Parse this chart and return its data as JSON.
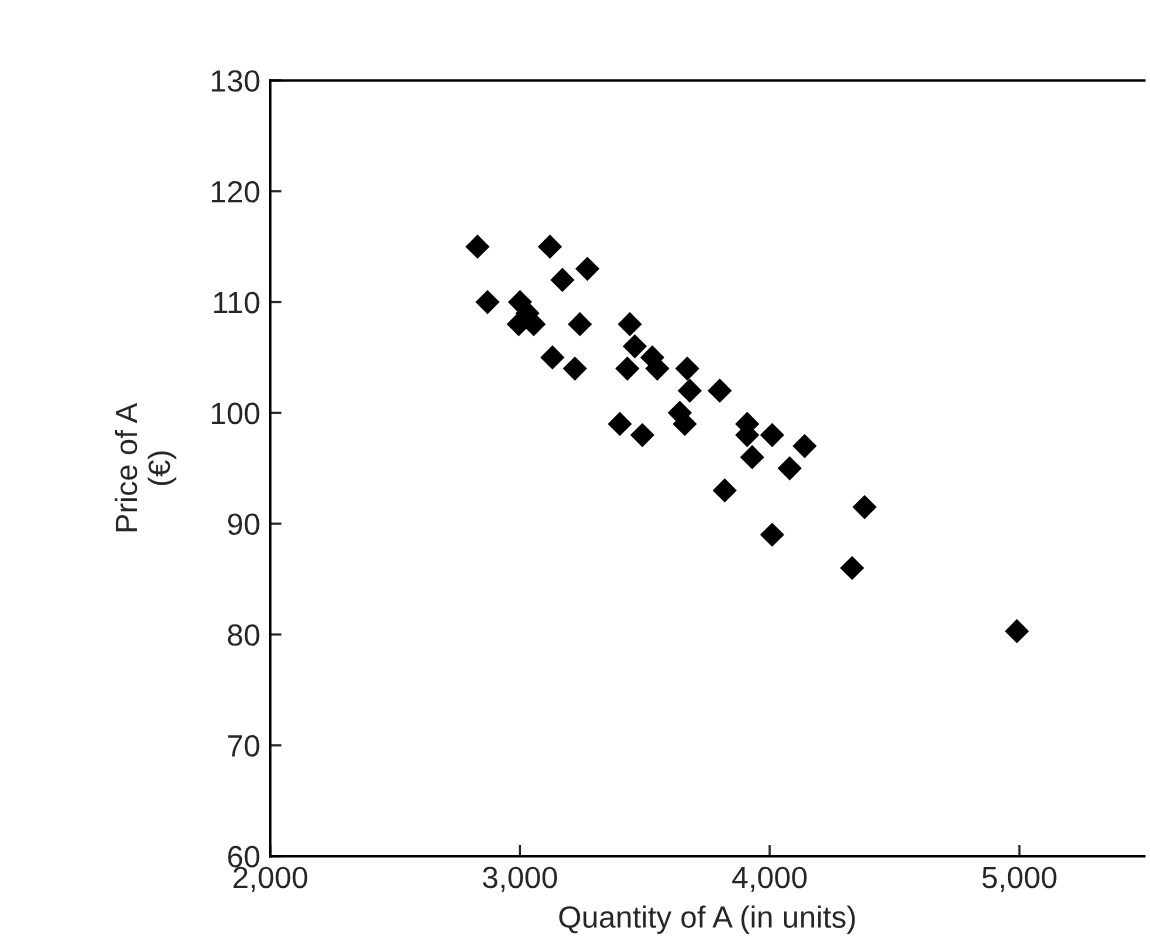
{
  "chart_data": {
    "type": "scatter",
    "xlabel": "Quantity of A (in units)",
    "ylabel": "Price of A\n(€)",
    "marker": "diamond",
    "grid": false,
    "legend": false,
    "xlim": [
      2000,
      5500
    ],
    "ylim": [
      60,
      130
    ],
    "xticks": [
      {
        "value": 2000,
        "label": "2,000"
      },
      {
        "value": 3000,
        "label": "3,000"
      },
      {
        "value": 4000,
        "label": "4,000"
      },
      {
        "value": 5000,
        "label": "5,000"
      }
    ],
    "yticks": [
      60,
      70,
      80,
      90,
      100,
      110,
      120,
      130
    ],
    "series": [
      {
        "color": "#000000",
        "x": [
          2830,
          2870,
          3000,
          2995,
          3030,
          3055,
          3120,
          3130,
          3170,
          3220,
          3240,
          3270,
          3400,
          3430,
          3440,
          3460,
          3490,
          3530,
          3550,
          3640,
          3660,
          3670,
          3680,
          3800,
          3820,
          3910,
          3910,
          3930,
          4010,
          4010,
          4080,
          4140,
          4330,
          4380,
          4990
        ],
        "values": [
          115,
          110,
          110,
          108,
          109,
          108,
          115,
          105,
          112,
          104,
          108,
          113,
          99,
          104,
          108,
          106,
          98,
          105,
          104,
          100,
          99,
          104,
          102,
          102,
          93,
          99,
          98,
          96,
          98,
          89,
          95,
          97,
          86,
          91.5,
          80.3
        ]
      }
    ]
  }
}
